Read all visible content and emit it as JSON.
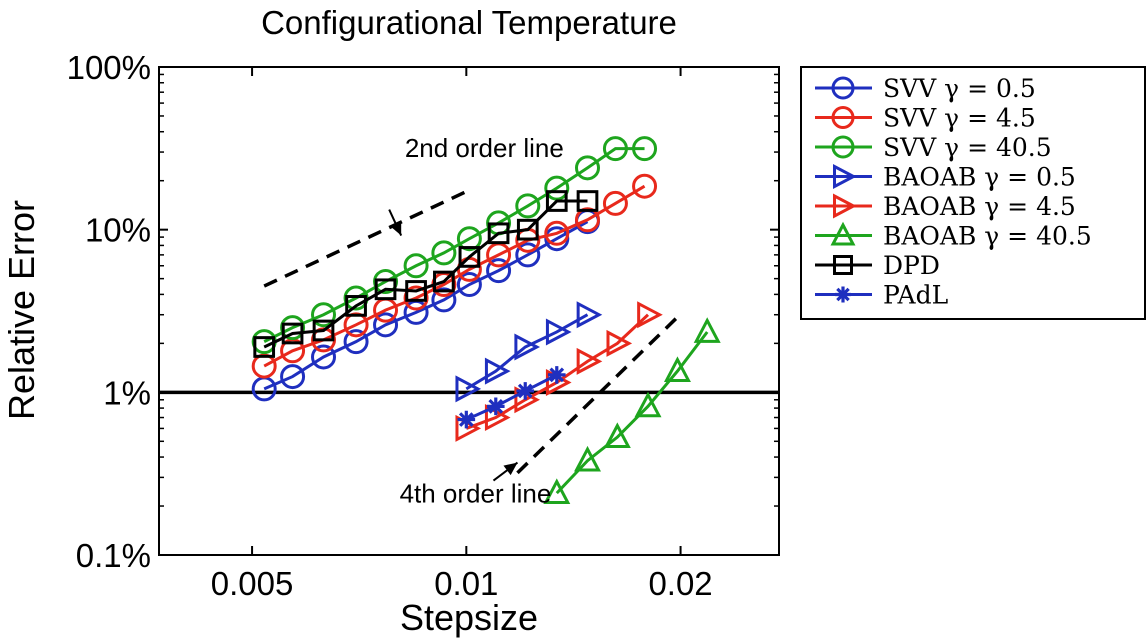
{
  "chart_data": {
    "type": "line",
    "title": "Configurational Temperature",
    "xlabel": "Stepsize",
    "ylabel": "Relative Error",
    "x_scale": "log",
    "y_scale": "log",
    "xlim": [
      0.0037,
      0.0275
    ],
    "ylim": [
      0.1,
      100
    ],
    "x_ticks": [
      {
        "value": 0.005,
        "label": "0.005"
      },
      {
        "value": 0.01,
        "label": "0.01"
      },
      {
        "value": 0.02,
        "label": "0.02"
      }
    ],
    "y_ticks": [
      {
        "value": 0.1,
        "label": "0.1%"
      },
      {
        "value": 1,
        "label": "1%"
      },
      {
        "value": 10,
        "label": "10%"
      },
      {
        "value": 100,
        "label": "100%"
      }
    ],
    "grid": false,
    "legend_position": "outside-right",
    "series": [
      {
        "name": "SVV γ = 0.5",
        "color": "#1f2fbf",
        "marker": "circle",
        "x": [
          0.0052,
          0.0057,
          0.0063,
          0.007,
          0.0077,
          0.0085,
          0.0093,
          0.0101,
          0.0111,
          0.0122,
          0.0134,
          0.0148
        ],
        "y": [
          1.05,
          1.25,
          1.65,
          2.05,
          2.6,
          3.1,
          3.7,
          4.6,
          5.6,
          7.0,
          8.8,
          11.2
        ]
      },
      {
        "name": "SVV γ = 4.5",
        "color": "#e8291c",
        "marker": "circle",
        "x": [
          0.0052,
          0.0057,
          0.0063,
          0.007,
          0.0077,
          0.0085,
          0.0093,
          0.0101,
          0.0111,
          0.0122,
          0.0134,
          0.0148,
          0.0162,
          0.0178
        ],
        "y": [
          1.45,
          1.8,
          2.1,
          2.6,
          3.2,
          3.8,
          4.6,
          5.7,
          7.0,
          8.6,
          9.5,
          11.5,
          14.5,
          18.5
        ]
      },
      {
        "name": "SVV γ = 40.5",
        "color": "#1ea51e",
        "marker": "circle",
        "x": [
          0.0052,
          0.0057,
          0.0063,
          0.007,
          0.0077,
          0.0085,
          0.0093,
          0.0101,
          0.0111,
          0.0122,
          0.0134,
          0.0148,
          0.0162,
          0.0178
        ],
        "y": [
          2.05,
          2.5,
          3.0,
          3.8,
          4.8,
          6.0,
          7.2,
          8.8,
          11.0,
          14.0,
          18.0,
          24.0,
          31.5,
          31.5
        ]
      },
      {
        "name": "BAOAB γ = 0.5",
        "color": "#1f2fbf",
        "marker": "triangle-right",
        "x": [
          0.01,
          0.011,
          0.0121,
          0.0134,
          0.0148
        ],
        "y": [
          1.05,
          1.35,
          1.9,
          2.35,
          3.0
        ]
      },
      {
        "name": "BAOAB γ = 4.5",
        "color": "#e8291c",
        "marker": "triangle-right",
        "x": [
          0.01,
          0.011,
          0.0121,
          0.0134,
          0.0148,
          0.0163,
          0.018
        ],
        "y": [
          0.6,
          0.7,
          0.9,
          1.15,
          1.55,
          2.0,
          3.0
        ]
      },
      {
        "name": "BAOAB γ = 40.5",
        "color": "#1ea51e",
        "marker": "triangle-up",
        "x": [
          0.0134,
          0.0148,
          0.0163,
          0.018,
          0.0198,
          0.0218
        ],
        "y": [
          0.24,
          0.38,
          0.53,
          0.82,
          1.35,
          2.35
        ]
      },
      {
        "name": "DPD",
        "color": "#000000",
        "marker": "square",
        "x": [
          0.0052,
          0.0057,
          0.0063,
          0.007,
          0.0077,
          0.0085,
          0.0093,
          0.0101,
          0.0111,
          0.0122,
          0.0134,
          0.0148
        ],
        "y": [
          1.9,
          2.3,
          2.4,
          3.4,
          4.3,
          4.2,
          4.8,
          6.8,
          9.5,
          10.0,
          15.0,
          15.0
        ]
      },
      {
        "name": "PAdL",
        "color": "#1f2fbf",
        "marker": "star",
        "x": [
          0.01,
          0.011,
          0.0121,
          0.0134
        ],
        "y": [
          0.68,
          0.82,
          1.02,
          1.28
        ]
      }
    ],
    "reference_lines": [
      {
        "kind": "dashed",
        "x": [
          0.0052,
          0.0101
        ],
        "y": [
          4.5,
          17.5
        ]
      },
      {
        "kind": "dashed",
        "x": [
          0.0118,
          0.0198
        ],
        "y": [
          0.32,
          2.9
        ]
      },
      {
        "kind": "solid",
        "x": [
          0.0037,
          0.0275
        ],
        "y": [
          1,
          1
        ]
      }
    ],
    "annotations": [
      {
        "text": "2nd order line",
        "x": 0.0106,
        "y": 28,
        "arrow_to": [
          0.0081,
          9.2
        ]
      },
      {
        "text": "4th order line",
        "x": 0.0103,
        "y": 0.21,
        "arrow_to": [
          0.0118,
          0.37
        ]
      }
    ]
  }
}
